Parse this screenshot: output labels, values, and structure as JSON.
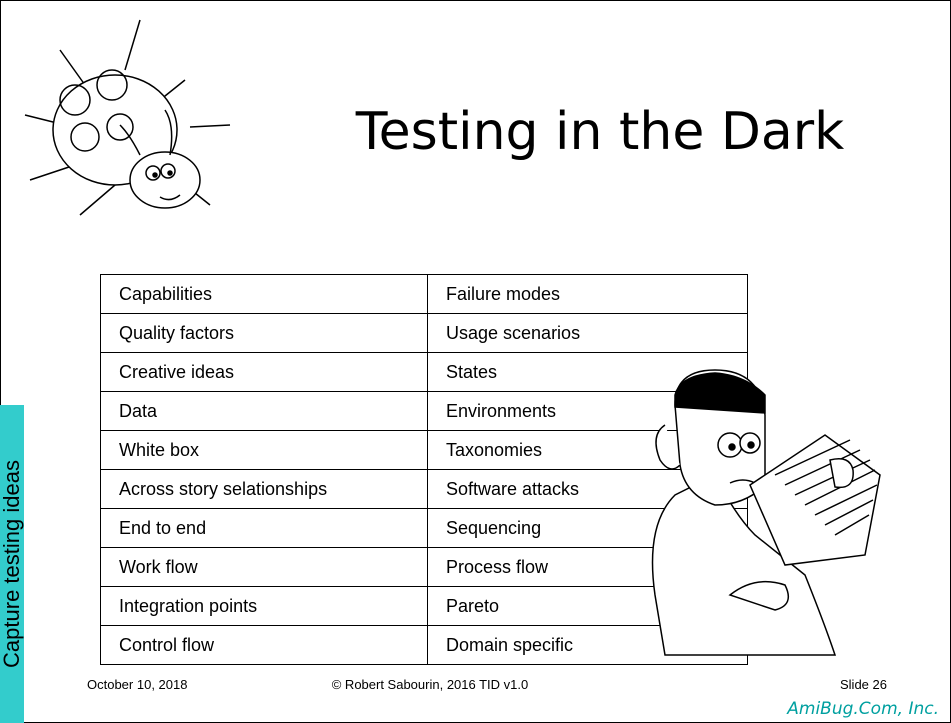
{
  "title": "Testing in the Dark",
  "side_label": "Capture testing ideas",
  "table": {
    "rows": [
      [
        "Capabilities",
        "Failure modes"
      ],
      [
        "Quality factors",
        "Usage scenarios"
      ],
      [
        "Creative ideas",
        "States"
      ],
      [
        "Data",
        "Environments"
      ],
      [
        "White box",
        "Taxonomies"
      ],
      [
        "Across story selationships",
        "Software attacks"
      ],
      [
        "End to end",
        "Sequencing"
      ],
      [
        "Work flow",
        "Process flow"
      ],
      [
        "Integration points",
        "Pareto"
      ],
      [
        "Control flow",
        "Domain specific"
      ]
    ]
  },
  "footer": {
    "date": "October 10, 2018",
    "copyright": "© Robert Sabourin, 2016 TID v1.0",
    "slide": "Slide 26"
  },
  "brand": "AmiBug.Com, Inc."
}
